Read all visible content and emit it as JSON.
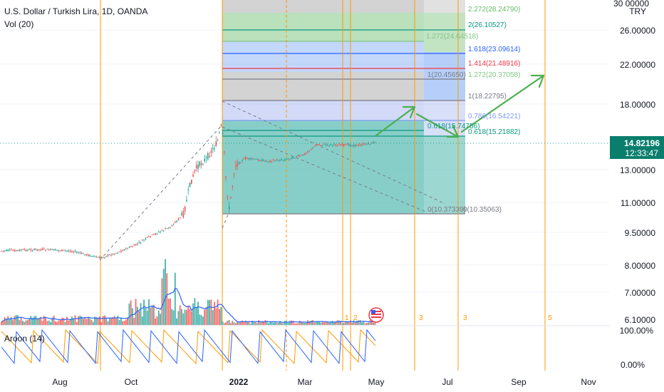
{
  "header": {
    "symbol_line": "U.S. Dollar / Turkish Lira, 1D, OANDA",
    "volume_label": "Vol (20)"
  },
  "indicator": {
    "label": "Aroon (14)"
  },
  "price_axis": {
    "currency": "TRY",
    "top_label": "30 00000",
    "ticks": [
      "26.00000",
      "22.00000",
      "18.00000",
      "13.00000",
      "11.00000",
      "9.50000",
      "8.00000",
      "7.00000",
      "6.10000"
    ],
    "current_price": "14.82196",
    "countdown": "12:33:47",
    "indicator_ticks": [
      "100.00%",
      "0.00%"
    ]
  },
  "time_axis": {
    "labels": [
      "Aug",
      "Oct",
      "2022",
      "Mar",
      "May",
      "Jul",
      "Sep",
      "Nov"
    ]
  },
  "cycle_markers": [
    "1",
    "2",
    "3",
    "3",
    "5"
  ],
  "fib_levels": {
    "right": [
      {
        "label": "2.272(28.24790)",
        "color": "#66bb6a"
      },
      {
        "label": "2(26.10527)",
        "color": "#089981"
      },
      {
        "label": "1.618(23.09614)",
        "color": "#2962ff"
      },
      {
        "label": "1.414(21.48916)",
        "color": "#f23645"
      },
      {
        "label": "1.272(20.37058)",
        "color": "#81c784"
      },
      {
        "label": "1(18.22795)",
        "color": "#787b86"
      },
      {
        "label": "0.786(16.54221)",
        "color": "#7e9cf6"
      },
      {
        "label": "0.618(15.21882)",
        "color": "#089981"
      }
    ],
    "left": [
      {
        "label": "1.272(24.64518)",
        "color": "#81c784"
      },
      {
        "label": "1(20.45650)",
        "color": "#787b86"
      },
      {
        "label": "0.618(15.74756)",
        "color": "#089981"
      },
      {
        "label": "0(10.37339)",
        "color": "#787b86"
      }
    ],
    "base_right": {
      "label": "0(10.35063)",
      "color": "#787b86"
    }
  },
  "colors": {
    "up": "#26a69a",
    "down": "#ef5350",
    "arrow": "#4caf50",
    "cycle_line": "#ff9800",
    "aroon_up": "#ff9800",
    "aroon_down": "#2962ff",
    "price_badge": "#0a7e6d"
  },
  "icons": {
    "event_flag": "us-flag-icon"
  }
}
